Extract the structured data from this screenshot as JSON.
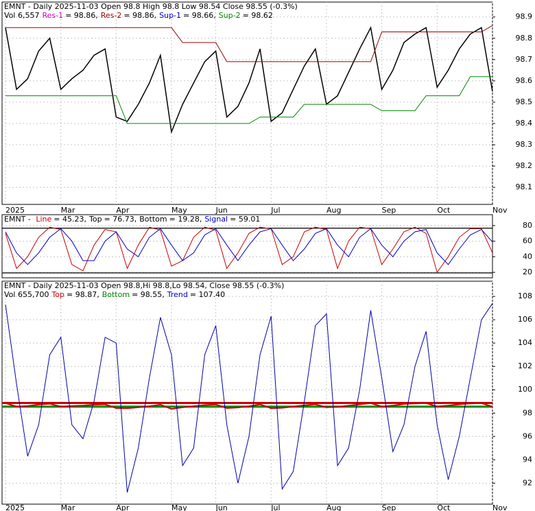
{
  "chart_data": [
    {
      "type": "line",
      "title": "EMNT - Daily 2025-11-03 Open 98.8  High 98.8  Low 98.54  Close 98.55 (-0.3%)",
      "annotations": [
        {
          "text": "Vol 6,557",
          "color": "#000000"
        },
        {
          "text": "Res-1",
          "color": "#cc00cc"
        },
        {
          "text": "= 98.86,",
          "color": "#000000"
        },
        {
          "text": "Res-2",
          "color": "#990000"
        },
        {
          "text": "= 98.86,",
          "color": "#000000"
        },
        {
          "text": "Sup-1",
          "color": "#0000cc"
        },
        {
          "text": "= 98.66,",
          "color": "#000000"
        },
        {
          "text": "Sup-2",
          "color": "#008800"
        },
        {
          "text": "= 98.62",
          "color": "#000000"
        }
      ],
      "categories": [
        "2025",
        null,
        null,
        null,
        null,
        "Mar",
        null,
        null,
        null,
        null,
        "Apr",
        null,
        null,
        null,
        null,
        "May",
        null,
        null,
        null,
        "Jun",
        null,
        null,
        null,
        null,
        "Jul",
        null,
        null,
        null,
        null,
        "Aug",
        null,
        null,
        null,
        null,
        "Sep",
        null,
        null,
        null,
        null,
        "Oct",
        null,
        null,
        null,
        null,
        "Nov"
      ],
      "series": [
        {
          "name": "Close",
          "color": "#000000",
          "values": [
            98.85,
            98.56,
            98.61,
            98.74,
            98.8,
            98.56,
            98.61,
            98.65,
            98.72,
            98.75,
            98.43,
            98.41,
            98.49,
            98.59,
            98.72,
            98.36,
            98.49,
            98.59,
            98.69,
            98.74,
            98.43,
            98.48,
            98.59,
            98.75,
            98.41,
            98.45,
            98.56,
            98.67,
            98.75,
            98.49,
            98.53,
            98.64,
            98.75,
            98.85,
            98.56,
            98.65,
            98.78,
            98.82,
            98.85,
            98.57,
            98.65,
            98.75,
            98.82,
            98.85,
            98.55
          ]
        },
        {
          "name": "Res-2",
          "color": "#990000",
          "values": [
            98.85,
            98.85,
            98.85,
            98.85,
            98.85,
            98.85,
            98.85,
            98.85,
            98.85,
            98.85,
            98.85,
            98.85,
            98.85,
            98.85,
            98.85,
            98.85,
            98.78,
            98.78,
            98.78,
            98.78,
            98.69,
            98.69,
            98.69,
            98.69,
            98.69,
            98.69,
            98.69,
            98.69,
            98.69,
            98.69,
            98.69,
            98.69,
            98.69,
            98.69,
            98.83,
            98.83,
            98.83,
            98.83,
            98.83,
            98.83,
            98.83,
            98.83,
            98.83,
            98.83,
            98.86
          ]
        },
        {
          "name": "Sup-2",
          "color": "#008800",
          "values": [
            98.53,
            98.53,
            98.53,
            98.53,
            98.53,
            98.53,
            98.53,
            98.53,
            98.53,
            98.53,
            98.53,
            98.4,
            98.4,
            98.4,
            98.4,
            98.4,
            98.4,
            98.4,
            98.4,
            98.4,
            98.4,
            98.4,
            98.4,
            98.43,
            98.43,
            98.43,
            98.43,
            98.49,
            98.49,
            98.49,
            98.49,
            98.49,
            98.49,
            98.49,
            98.46,
            98.46,
            98.46,
            98.46,
            98.53,
            98.53,
            98.53,
            98.53,
            98.62,
            98.62,
            98.62
          ]
        }
      ],
      "ylim": [
        98.02,
        98.97
      ],
      "yticks": [
        98.1,
        98.2,
        98.3,
        98.4,
        98.5,
        98.6,
        98.7,
        98.8,
        98.9
      ],
      "grid": true
    },
    {
      "type": "line",
      "annotations": [
        {
          "text": "EMNT - ",
          "color": "#000000"
        },
        {
          "text": "Line",
          "color": "#cc0000"
        },
        {
          "text": "= 45.23,",
          "color": "#000000"
        },
        {
          "text": "Top",
          "color": "#000000"
        },
        {
          "text": "= 76.73,",
          "color": "#000000"
        },
        {
          "text": "Bottom",
          "color": "#000000"
        },
        {
          "text": "= 19.28,",
          "color": "#000000"
        },
        {
          "text": "Signal",
          "color": "#0000cc"
        },
        {
          "text": "= 59.01",
          "color": "#000000"
        }
      ],
      "series": [
        {
          "name": "Line",
          "color": "#cc0000",
          "values": [
            70,
            25,
            40,
            65,
            78,
            75,
            30,
            22,
            55,
            75,
            72,
            25,
            55,
            78,
            74,
            28,
            35,
            65,
            78,
            74,
            25,
            45,
            70,
            78,
            76,
            30,
            40,
            72,
            78,
            75,
            25,
            60,
            78,
            76,
            30,
            50,
            72,
            78,
            70,
            20,
            40,
            65,
            76,
            76,
            45
          ]
        },
        {
          "name": "Signal",
          "color": "#0000cc",
          "values": [
            72,
            45,
            30,
            45,
            65,
            76,
            60,
            35,
            35,
            60,
            72,
            50,
            40,
            65,
            76,
            55,
            35,
            45,
            68,
            76,
            55,
            35,
            55,
            72,
            76,
            55,
            35,
            50,
            70,
            76,
            55,
            40,
            65,
            76,
            55,
            40,
            60,
            72,
            75,
            45,
            30,
            50,
            68,
            75,
            59
          ]
        }
      ],
      "reference_lines": [
        {
          "value": 76.73,
          "color": "#000000"
        },
        {
          "value": 19.28,
          "color": "#000000"
        }
      ],
      "ylim": [
        13,
        94
      ],
      "yticks": [
        20,
        40,
        60,
        80
      ],
      "grid": true
    },
    {
      "type": "line",
      "title": "EMNT - Daily 2025-11-03 Open 98.8,Hi 98.8,Lo 98.54, Close 98.55 (-0.3%)",
      "annotations": [
        {
          "text": "Vol 655,700",
          "color": "#000000"
        },
        {
          "text": "Top",
          "color": "#cc0000"
        },
        {
          "text": "= 98.87,",
          "color": "#000000"
        },
        {
          "text": "Bottom",
          "color": "#008800"
        },
        {
          "text": "= 98.55,",
          "color": "#000000"
        },
        {
          "text": "Trend",
          "color": "#0000cc"
        },
        {
          "text": "= 107.40",
          "color": "#000000"
        }
      ],
      "categories": [
        "2025",
        null,
        null,
        null,
        null,
        "Mar",
        null,
        null,
        null,
        null,
        "Apr",
        null,
        null,
        null,
        null,
        "May",
        null,
        null,
        null,
        "Jun",
        null,
        null,
        null,
        null,
        "Jul",
        null,
        null,
        null,
        null,
        "Aug",
        null,
        null,
        null,
        null,
        "Sep",
        null,
        null,
        null,
        null,
        "Oct",
        null,
        null,
        null,
        null,
        "Nov"
      ],
      "series": [
        {
          "name": "Trend",
          "color": "#0000aa",
          "values": [
            107.3,
            100.5,
            94.3,
            97,
            103,
            104.5,
            97,
            95.8,
            99,
            104.5,
            104,
            91.2,
            95,
            101,
            106.2,
            103,
            93.5,
            95,
            103,
            105.5,
            97,
            92,
            96,
            103,
            106.3,
            91.5,
            93,
            99,
            105.5,
            106.5,
            93.5,
            95,
            100,
            106.8,
            101,
            94.7,
            97,
            102,
            105,
            97,
            92.3,
            96,
            101,
            106,
            107.4
          ]
        }
      ],
      "reference_lines": [
        {
          "value": 98.87,
          "color": "#cc0000"
        },
        {
          "value": 98.55,
          "color": "#008800"
        }
      ],
      "ylim": [
        90.2,
        109.3
      ],
      "yticks": [
        92,
        94,
        96,
        98,
        100,
        102,
        104,
        106,
        108
      ],
      "grid": true
    }
  ]
}
